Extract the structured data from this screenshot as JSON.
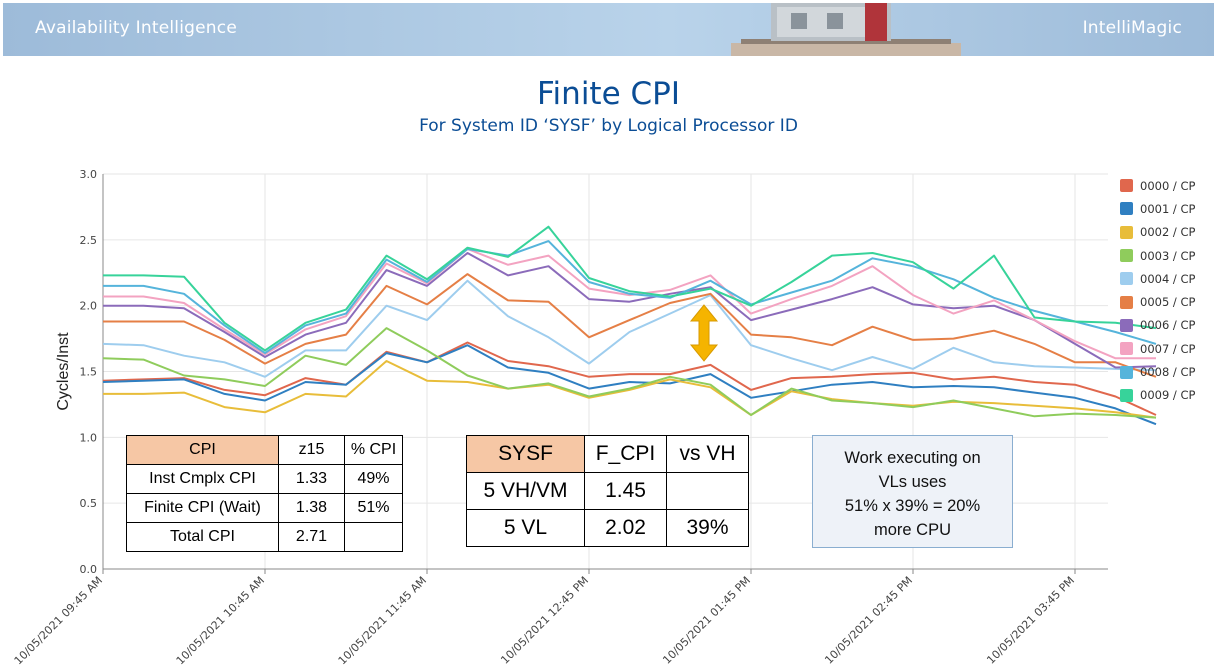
{
  "banner": {
    "left_text": "Availability Intelligence",
    "right_text": "IntelliMagic",
    "background_color": "#9dbbd9"
  },
  "chart_data": {
    "type": "line",
    "title": "Finite CPI",
    "subtitle": "For System ID ‘SYSF’ by Logical Processor ID",
    "ylabel": "Cycles/Inst",
    "xlabel": "",
    "ylim": [
      0.0,
      3.0
    ],
    "yticks": [
      "0.0",
      "0.5",
      "1.0",
      "1.5",
      "2.0",
      "2.5",
      "3.0"
    ],
    "xticks": [
      "10/05/2021 09:45 AM",
      "10/05/2021 10:45 AM",
      "10/05/2021 11:45 AM",
      "10/05/2021 12:45 PM",
      "10/05/2021 01:45 PM",
      "10/05/2021 02:45 PM",
      "10/05/2021 03:45 PM"
    ],
    "x_start": "10/05/2021 09:45 AM",
    "x_interval_minutes": 15,
    "grid": true,
    "legend_position": "right",
    "series": [
      {
        "name": "0000 / CP",
        "color": "#e0674d",
        "values": [
          1.43,
          1.44,
          1.45,
          1.36,
          1.32,
          1.45,
          1.4,
          1.65,
          1.57,
          1.72,
          1.58,
          1.54,
          1.46,
          1.48,
          1.48,
          1.55,
          1.36,
          1.45,
          1.46,
          1.48,
          1.49,
          1.44,
          1.46,
          1.42,
          1.4,
          1.31,
          1.17
        ]
      },
      {
        "name": "0001 / CP",
        "color": "#2f7fc1",
        "values": [
          1.42,
          1.43,
          1.44,
          1.33,
          1.28,
          1.42,
          1.4,
          1.64,
          1.57,
          1.7,
          1.53,
          1.49,
          1.37,
          1.42,
          1.41,
          1.48,
          1.3,
          1.35,
          1.4,
          1.42,
          1.38,
          1.39,
          1.38,
          1.34,
          1.3,
          1.22,
          1.1
        ]
      },
      {
        "name": "0002 / CP",
        "color": "#e8bd3a",
        "values": [
          1.33,
          1.33,
          1.34,
          1.23,
          1.19,
          1.33,
          1.31,
          1.58,
          1.43,
          1.42,
          1.37,
          1.4,
          1.3,
          1.36,
          1.44,
          1.38,
          1.17,
          1.35,
          1.29,
          1.26,
          1.24,
          1.27,
          1.26,
          1.24,
          1.22,
          1.19,
          1.15
        ]
      },
      {
        "name": "0003 / CP",
        "color": "#8fcc5c",
        "values": [
          1.6,
          1.59,
          1.47,
          1.44,
          1.39,
          1.62,
          1.55,
          1.83,
          1.66,
          1.47,
          1.37,
          1.41,
          1.31,
          1.37,
          1.46,
          1.4,
          1.17,
          1.37,
          1.28,
          1.26,
          1.23,
          1.28,
          1.22,
          1.16,
          1.18,
          1.17,
          1.15
        ]
      },
      {
        "name": "0004 / CP",
        "color": "#9ecdee",
        "values": [
          1.71,
          1.7,
          1.62,
          1.57,
          1.46,
          1.66,
          1.66,
          2.0,
          1.89,
          2.19,
          1.92,
          1.76,
          1.56,
          1.8,
          1.94,
          2.08,
          1.7,
          1.6,
          1.51,
          1.61,
          1.52,
          1.68,
          1.57,
          1.54,
          1.53,
          1.52,
          1.51
        ]
      },
      {
        "name": "0005 / CP",
        "color": "#e57f46",
        "values": [
          1.88,
          1.88,
          1.88,
          1.74,
          1.56,
          1.71,
          1.78,
          2.15,
          2.01,
          2.24,
          2.04,
          2.03,
          1.76,
          1.89,
          2.02,
          2.09,
          1.78,
          1.76,
          1.7,
          1.84,
          1.74,
          1.75,
          1.81,
          1.71,
          1.57,
          1.57,
          1.46
        ]
      },
      {
        "name": "0006 / CP",
        "color": "#8b6bba",
        "values": [
          2.0,
          2.0,
          1.98,
          1.8,
          1.61,
          1.78,
          1.87,
          2.27,
          2.15,
          2.4,
          2.23,
          2.3,
          2.05,
          2.03,
          2.09,
          2.14,
          1.89,
          1.97,
          2.05,
          2.14,
          2.01,
          1.98,
          2.0,
          1.89,
          1.71,
          1.53,
          1.54
        ]
      },
      {
        "name": "0007 / CP",
        "color": "#f3a3c1",
        "values": [
          2.07,
          2.07,
          2.02,
          1.82,
          1.63,
          1.82,
          1.92,
          2.32,
          2.17,
          2.43,
          2.31,
          2.38,
          2.13,
          2.08,
          2.12,
          2.23,
          1.94,
          2.05,
          2.15,
          2.3,
          2.08,
          1.94,
          2.04,
          1.89,
          1.73,
          1.6,
          1.6
        ]
      },
      {
        "name": "0008 / CP",
        "color": "#55b4db",
        "values": [
          2.15,
          2.15,
          2.09,
          1.85,
          1.64,
          1.85,
          1.94,
          2.35,
          2.18,
          2.43,
          2.38,
          2.49,
          2.18,
          2.09,
          2.06,
          2.19,
          2.01,
          2.1,
          2.19,
          2.36,
          2.3,
          2.2,
          2.06,
          1.96,
          1.88,
          1.8,
          1.71
        ]
      },
      {
        "name": "0009 / CP",
        "color": "#37d39a",
        "values": [
          2.23,
          2.23,
          2.22,
          1.87,
          1.66,
          1.87,
          1.97,
          2.38,
          2.2,
          2.44,
          2.37,
          2.6,
          2.21,
          2.11,
          2.07,
          2.13,
          2.0,
          2.18,
          2.38,
          2.4,
          2.33,
          2.13,
          2.38,
          1.91,
          1.88,
          1.87,
          1.83
        ]
      }
    ]
  },
  "arrow": {
    "color": "#f5b400"
  },
  "cpi_table": {
    "headers": [
      "CPI",
      "z15",
      "% CPI"
    ],
    "rows": [
      [
        "Inst Cmplx CPI",
        "1.33",
        "49%"
      ],
      [
        "Finite CPI (Wait)",
        "1.38",
        "51%"
      ],
      [
        "Total CPI",
        "2.71",
        ""
      ]
    ],
    "header_color": "#f6c7a5"
  },
  "sysf_table": {
    "headers": [
      "SYSF",
      "F_CPI",
      "vs VH"
    ],
    "rows": [
      [
        "5 VH/VM",
        "1.45",
        ""
      ],
      [
        "5 VL",
        "2.02",
        "39%"
      ]
    ]
  },
  "note": {
    "line1": "Work executing on",
    "line2": "VLs uses",
    "line3": "51% x 39% = 20%",
    "line4": "more CPU"
  }
}
